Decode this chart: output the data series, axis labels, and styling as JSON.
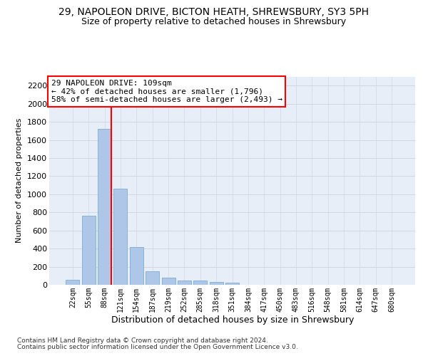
{
  "title": "29, NAPOLEON DRIVE, BICTON HEATH, SHREWSBURY, SY3 5PH",
  "subtitle": "Size of property relative to detached houses in Shrewsbury",
  "xlabel": "Distribution of detached houses by size in Shrewsbury",
  "ylabel": "Number of detached properties",
  "bin_labels": [
    "22sqm",
    "55sqm",
    "88sqm",
    "121sqm",
    "154sqm",
    "187sqm",
    "219sqm",
    "252sqm",
    "285sqm",
    "318sqm",
    "351sqm",
    "384sqm",
    "417sqm",
    "450sqm",
    "483sqm",
    "516sqm",
    "548sqm",
    "581sqm",
    "614sqm",
    "647sqm",
    "680sqm"
  ],
  "bar_heights": [
    55,
    760,
    1720,
    1060,
    420,
    150,
    80,
    50,
    45,
    30,
    20,
    0,
    0,
    0,
    0,
    0,
    0,
    0,
    0,
    0,
    0
  ],
  "bar_color": "#aec6e8",
  "bar_edge_color": "#7aafd4",
  "property_line_bin_idx": 2,
  "property_line_color": "red",
  "annotation_text": "29 NAPOLEON DRIVE: 109sqm\n← 42% of detached houses are smaller (1,796)\n58% of semi-detached houses are larger (2,493) →",
  "annotation_box_facecolor": "white",
  "annotation_box_edgecolor": "red",
  "ylim": [
    0,
    2300
  ],
  "yticks": [
    0,
    200,
    400,
    600,
    800,
    1000,
    1200,
    1400,
    1600,
    1800,
    2000,
    2200
  ],
  "bg_color": "#e8eef7",
  "grid_color": "#d0d8e8",
  "footer_line1": "Contains HM Land Registry data © Crown copyright and database right 2024.",
  "footer_line2": "Contains public sector information licensed under the Open Government Licence v3.0.",
  "title_fontsize": 10,
  "subtitle_fontsize": 9,
  "footer_fontsize": 6.5,
  "bar_label_fontsize": 7,
  "ytick_fontsize": 8,
  "ylabel_fontsize": 8,
  "xlabel_fontsize": 9
}
